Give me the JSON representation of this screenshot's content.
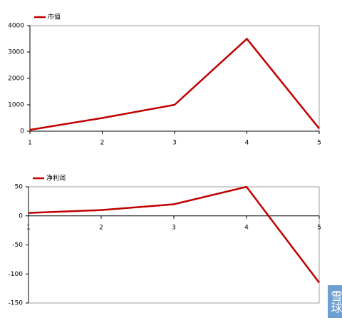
{
  "chart_data": [
    {
      "type": "line",
      "x": [
        1,
        2,
        3,
        4,
        5
      ],
      "xlim": [
        1,
        5
      ],
      "xticks": [
        1,
        2,
        3,
        4,
        5
      ],
      "ylim": [
        0,
        4000
      ],
      "yticks": [
        0,
        1000,
        2000,
        3000,
        4000
      ],
      "series": [
        {
          "name": "市值",
          "color": "#c00000",
          "values": [
            50,
            500,
            1000,
            3500,
            100
          ]
        }
      ]
    },
    {
      "type": "line",
      "x": [
        1,
        2,
        3,
        4,
        5
      ],
      "xlim": [
        1,
        5
      ],
      "xticks": [
        1,
        2,
        3,
        4,
        5
      ],
      "ylim": [
        -150,
        50
      ],
      "yticks": [
        -150,
        -100,
        -50,
        0,
        50
      ],
      "series": [
        {
          "name": "净利润",
          "color": "#c00000",
          "values": [
            5,
            10,
            20,
            50,
            -115
          ]
        }
      ]
    }
  ],
  "watermark": "雪球"
}
